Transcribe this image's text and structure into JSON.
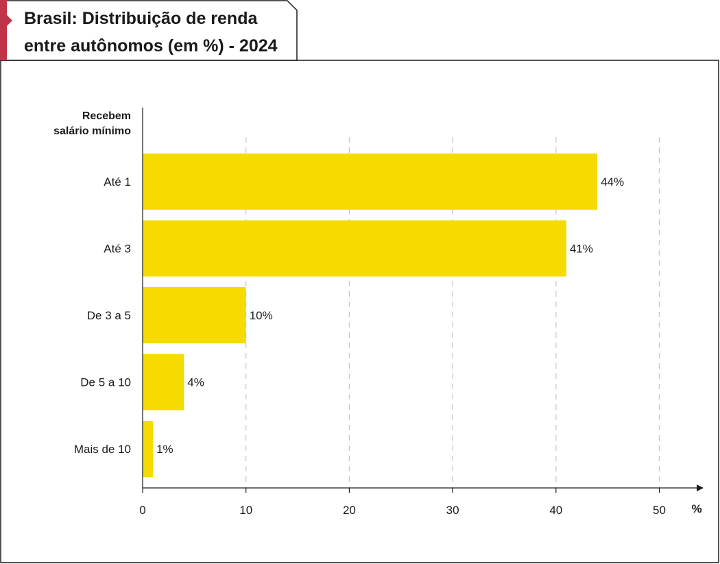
{
  "title_lines": [
    "Brasil: Distribuição de renda",
    "entre autônomos (em %) - 2024"
  ],
  "colors": {
    "bar": "#f5db00",
    "accent": "#c0344a",
    "grid": "#c8c8c8",
    "axis": "#1a1a1a"
  },
  "chart_data": {
    "type": "bar",
    "orientation": "horizontal",
    "title": "Brasil: Distribuição de renda entre autônomos (em %) - 2024",
    "category_header": [
      "Recebem",
      "salário mínimo"
    ],
    "categories": [
      "Até 1",
      "Até 3",
      "De 3 a 5",
      "De 5 a 10",
      "Mais de 10"
    ],
    "values": [
      44,
      41,
      10,
      4,
      1
    ],
    "value_labels": [
      "44%",
      "41%",
      "10%",
      "4%",
      "1%"
    ],
    "x_ticks": [
      0,
      10,
      20,
      30,
      40,
      50
    ],
    "x_tick_labels": [
      "0",
      "10",
      "20",
      "30",
      "40",
      "50"
    ],
    "xlim": [
      0,
      50
    ],
    "x_unit": "%",
    "grid": true
  }
}
